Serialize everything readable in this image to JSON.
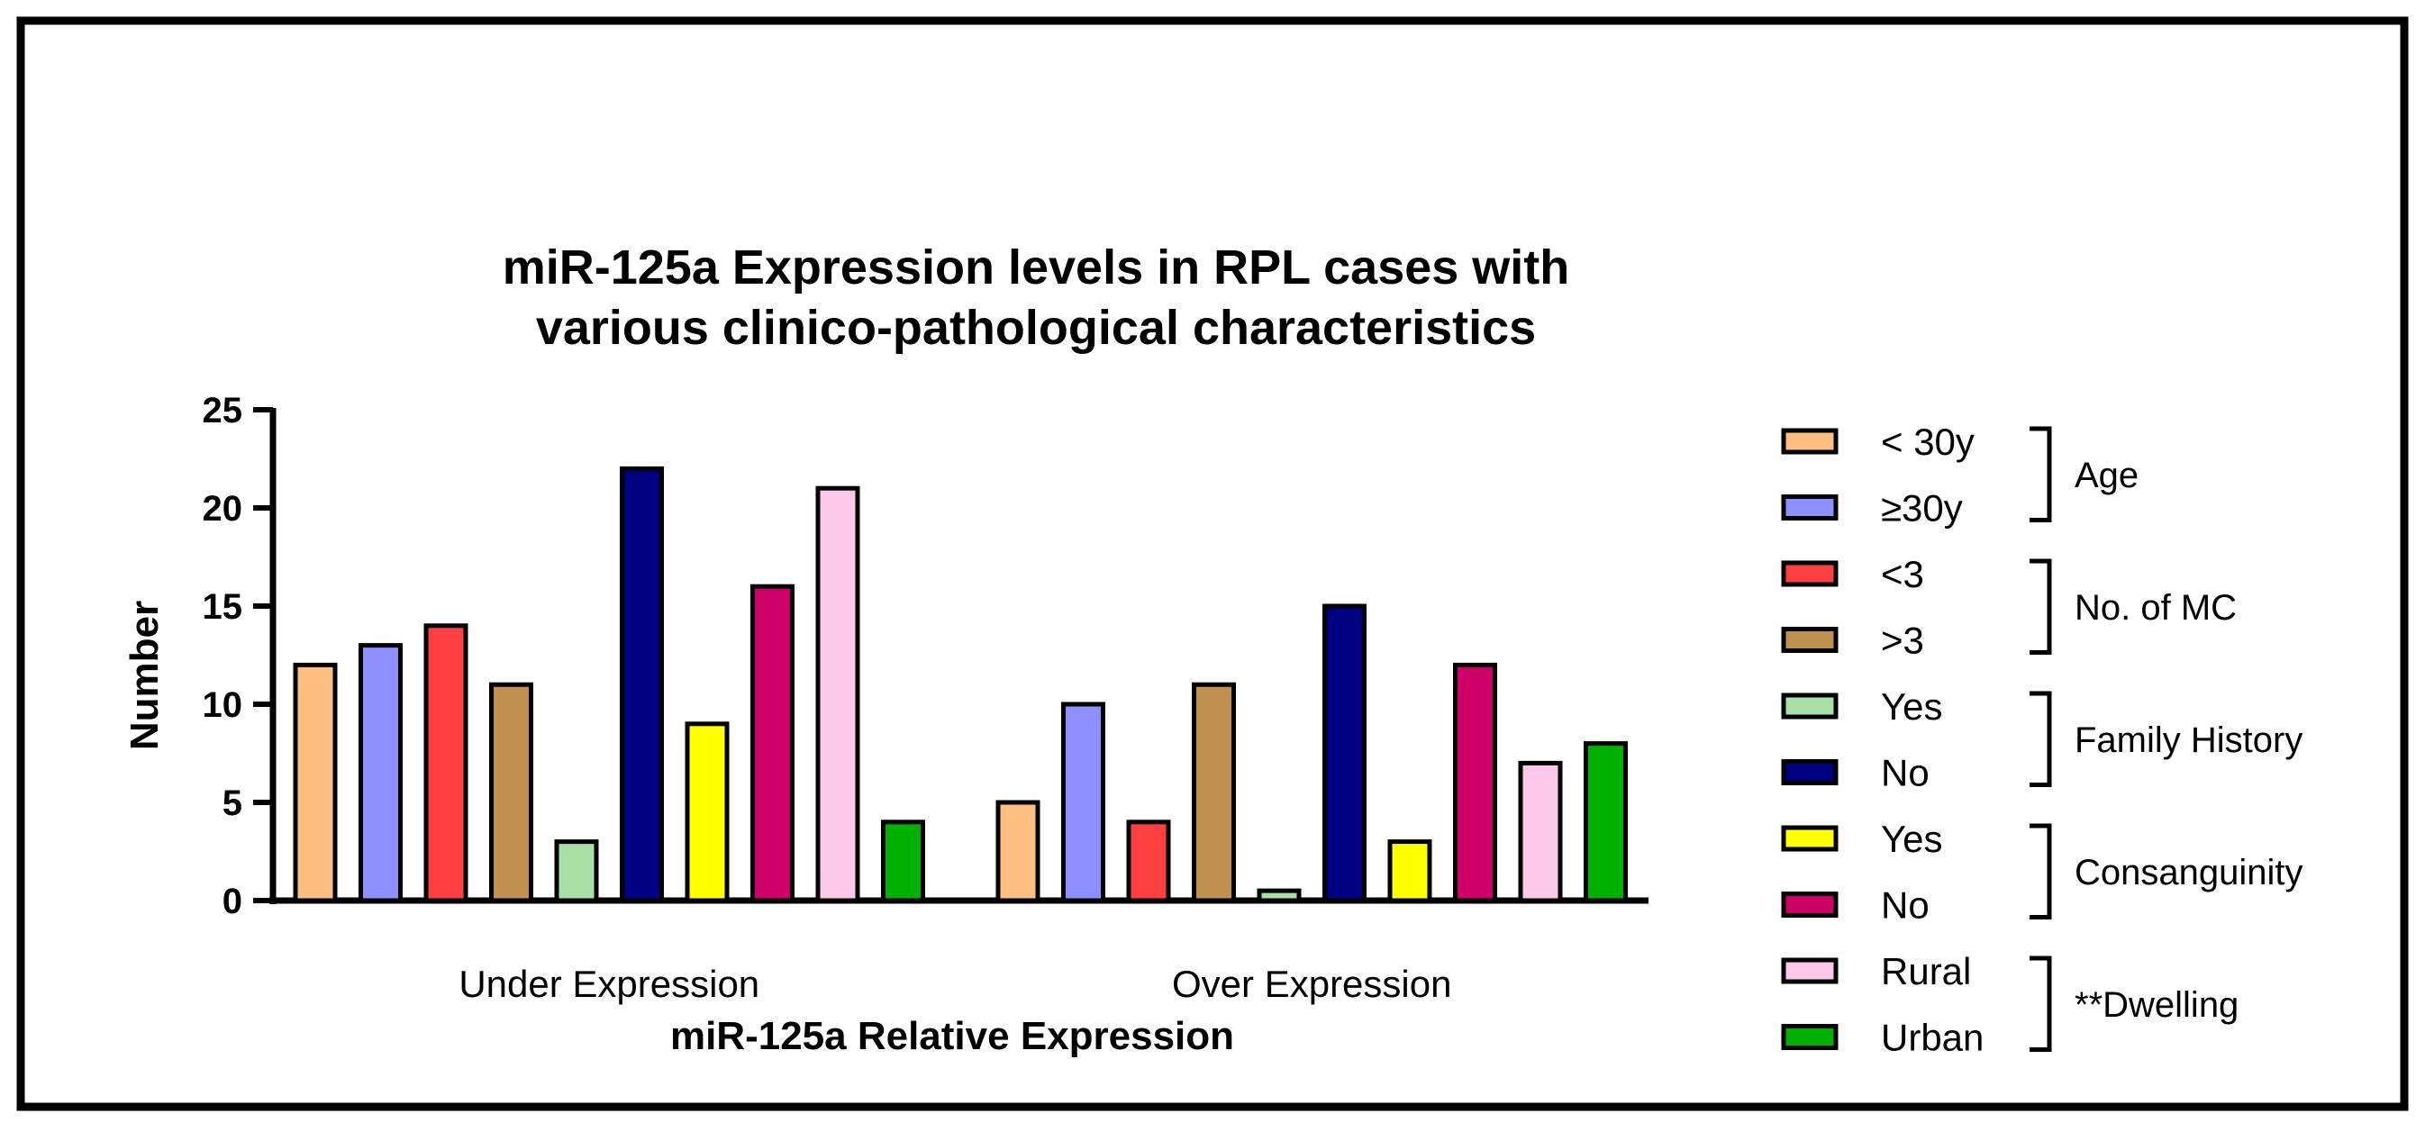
{
  "chart_data": {
    "type": "bar",
    "title_lines": [
      "miR-125a Expression levels in RPL cases with",
      "various clinico-pathological characteristics"
    ],
    "xlabel": "miR-125a Relative Expression",
    "ylabel": "Number",
    "ylim": [
      0,
      25
    ],
    "yticks": [
      "0",
      "5",
      "10",
      "15",
      "20",
      "25"
    ],
    "grid": false,
    "legend_position": "right",
    "categories": [
      "Under Expression",
      "Over Expression"
    ],
    "series": [
      {
        "name": "< 30y",
        "group": "Age",
        "color": "#FFBF80",
        "values": [
          12,
          5
        ]
      },
      {
        "name": "≥30y",
        "group": "Age",
        "color": "#8F8FFF",
        "values": [
          13,
          10
        ]
      },
      {
        "name": "<3",
        "group": "No. of MC",
        "color": "#FF4040",
        "values": [
          14,
          4
        ]
      },
      {
        "name": ">3",
        "group": "No. of MC",
        "color": "#C09050",
        "values": [
          11,
          11
        ]
      },
      {
        "name": "Yes",
        "group": "Family History",
        "color": "#A8E0A8",
        "values": [
          3,
          0.5
        ]
      },
      {
        "name": "No",
        "group": "Family History",
        "color": "#000080",
        "values": [
          22,
          15
        ]
      },
      {
        "name": "Yes",
        "group": "Consanguinity",
        "color": "#FFFF00",
        "values": [
          9,
          3
        ]
      },
      {
        "name": "No",
        "group": "Consanguinity",
        "color": "#CC0066",
        "values": [
          16,
          12
        ]
      },
      {
        "name": "Rural",
        "group": "**Dwelling",
        "color": "#FAC8E8",
        "values": [
          21,
          7
        ]
      },
      {
        "name": "Urban",
        "group": "**Dwelling",
        "color": "#00B000",
        "values": [
          4,
          8
        ]
      }
    ],
    "legend_groups": [
      "Age",
      "No. of MC",
      "Family History",
      "Consanguinity",
      "**Dwelling"
    ]
  }
}
